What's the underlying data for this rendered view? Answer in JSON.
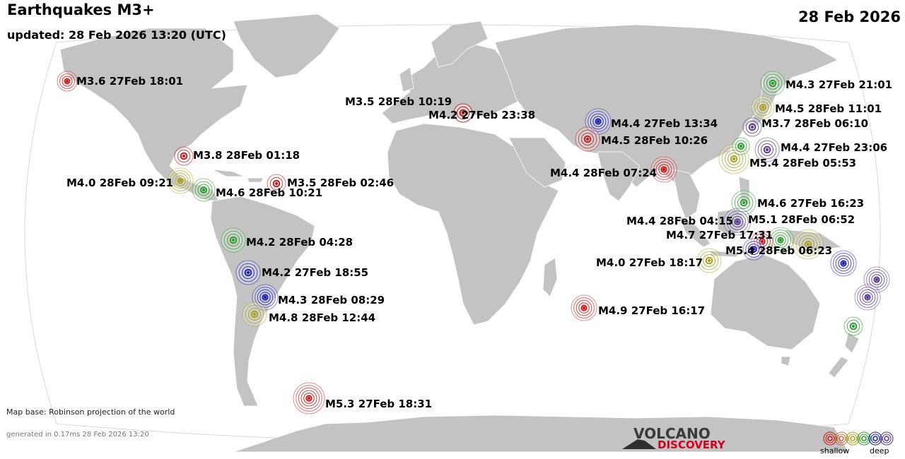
{
  "header": {
    "title": "Earthquakes M3+",
    "updated": "updated: 28 Feb 2026 13:20 (UTC)",
    "date": "28 Feb 2026"
  },
  "footer": {
    "map_base": "Map base: Robinson projection of the world",
    "generated": "generated in 0.17ms 28 Feb 2026 13:20"
  },
  "logo": {
    "line1": "VOLCANO",
    "line2": "DISCOVERY"
  },
  "legend": {
    "shallow_label": "shallow",
    "deep_label": "deep",
    "depth_colors": [
      "#c41e1e",
      "#d07040",
      "#a8a020",
      "#2e9e2e",
      "#1e1eb4",
      "#5a3a90"
    ]
  },
  "colors": {
    "ocean": "#ffffff",
    "land": "#c3c3c3",
    "land_border": "#ffffff",
    "shallow": "#c41e1e",
    "medium": "#a8a020",
    "intermediate": "#2e9e2e",
    "deep": "#1e1eb4",
    "very_deep": "#5a3a90"
  },
  "quakes": [
    {
      "label": "M3.6 27Feb 18:01",
      "color": "#c41e1e"
    },
    {
      "label": "M3.5 28Feb 10:19",
      "color": "#c41e1e"
    },
    {
      "label": "M4.2 27Feb 23:38",
      "color": "#c41e1e"
    },
    {
      "label": "M4.4 27Feb 13:34",
      "color": "#1e1eb4"
    },
    {
      "label": "M4.5 28Feb 10:26",
      "color": "#c41e1e"
    },
    {
      "label": "M4.3 27Feb 21:01",
      "color": "#2e9e2e"
    },
    {
      "label": "M4.5 28Feb 11:01",
      "color": "#a8a020"
    },
    {
      "label": "M3.7 28Feb 06:10",
      "color": "#5a3a90"
    },
    {
      "label": "M4.4 27Feb 23:06",
      "color": "#5a3a90"
    },
    {
      "label": "M5.4 28Feb 05:53",
      "color": "#a8a020"
    },
    {
      "label": "M3.8 28Feb 01:18",
      "color": "#c41e1e"
    },
    {
      "label": "M4.0 28Feb 09:21",
      "color": "#a8a020"
    },
    {
      "label": "M4.6 28Feb 10:21",
      "color": "#2e9e2e"
    },
    {
      "label": "M3.5 28Feb 02:46",
      "color": "#c41e1e"
    },
    {
      "label": "M4.4 28Feb 07:24",
      "color": "#c41e1e"
    },
    {
      "label": "M4.6 27Feb 16:23",
      "color": "#2e9e2e"
    },
    {
      "label": "M4.4 28Feb 04:15",
      "color": "#5a3a90"
    },
    {
      "label": "M5.1 28Feb 06:52",
      "color": "#2e9e2e"
    },
    {
      "label": "M4.7 27Feb 17:31",
      "color": "#c41e1e"
    },
    {
      "label": "M5.4 28Feb 06:23",
      "color": "#a8a020"
    },
    {
      "label": "M4.0 27Feb 18:17",
      "color": "#a8a020"
    },
    {
      "label": "M4.2 28Feb 04:28",
      "color": "#2e9e2e"
    },
    {
      "label": "M4.2 27Feb 18:55",
      "color": "#1e1eb4"
    },
    {
      "label": "M4.3 28Feb 08:29",
      "color": "#1e1eb4"
    },
    {
      "label": "M4.8 28Feb 12:44",
      "color": "#a8a020"
    },
    {
      "label": "M4.9 27Feb 16:17",
      "color": "#c41e1e"
    },
    {
      "label": "M5.3 27Feb 18:31",
      "color": "#c41e1e"
    },
    {
      "label": "",
      "color": "#1e1eb4"
    },
    {
      "label": "",
      "color": "#5a3a90"
    },
    {
      "label": "",
      "color": "#5a3a90"
    },
    {
      "label": "",
      "color": "#2e9e2e"
    },
    {
      "label": "",
      "color": "#1e1eb4"
    },
    {
      "label": "",
      "color": "#2e9e2e"
    }
  ]
}
